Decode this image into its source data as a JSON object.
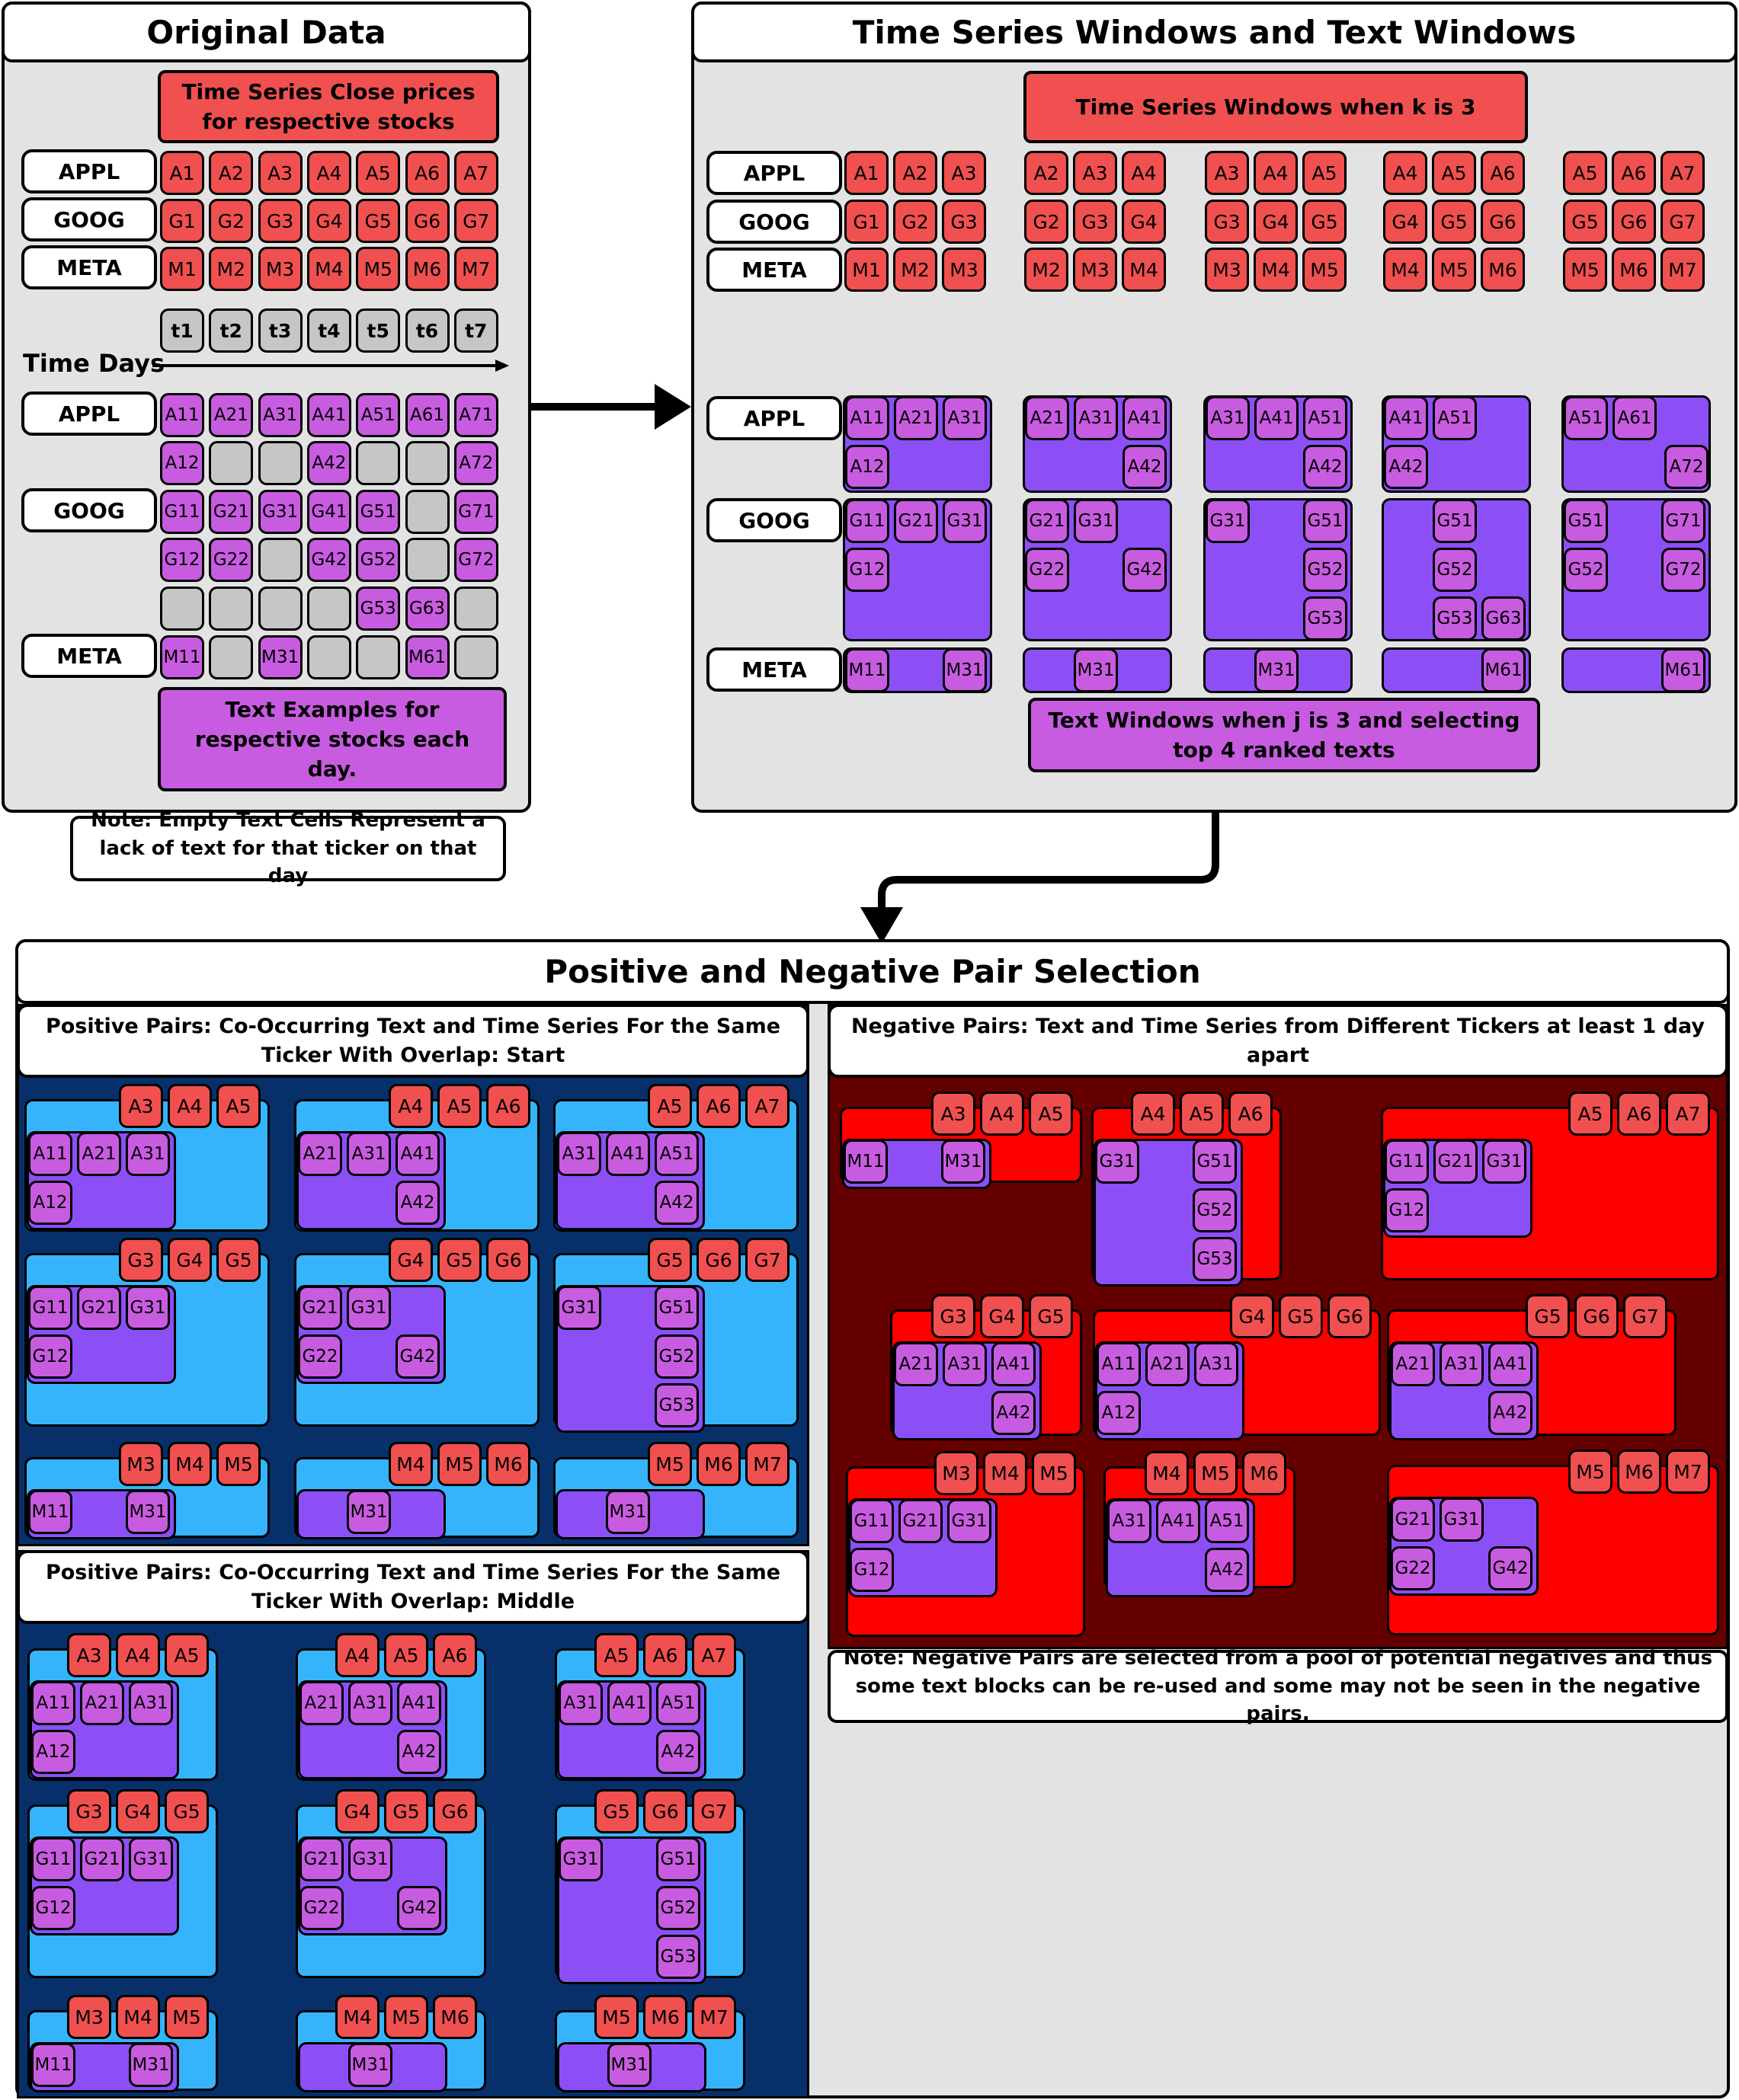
{
  "original_data": {
    "title": "Original Data",
    "close_label": "Time Series Close prices for respective stocks",
    "tickers": [
      "APPL",
      "GOOG",
      "META"
    ],
    "price_rows": [
      [
        "A1",
        "A2",
        "A3",
        "A4",
        "A5",
        "A6",
        "A7"
      ],
      [
        "G1",
        "G2",
        "G3",
        "G4",
        "G5",
        "G6",
        "G7"
      ],
      [
        "M1",
        "M2",
        "M3",
        "M4",
        "M5",
        "M6",
        "M7"
      ]
    ],
    "days": [
      "t1",
      "t2",
      "t3",
      "t4",
      "t5",
      "t6",
      "t7"
    ],
    "time_label": "Time Days",
    "text_rows": [
      [
        "A11",
        "A21",
        "A31",
        "A41",
        "A51",
        "A61",
        "A71"
      ],
      [
        "A12",
        "",
        "",
        "A42",
        "",
        "",
        "A72"
      ],
      [
        "G11",
        "G21",
        "G31",
        "G41",
        "G51",
        "",
        "G71"
      ],
      [
        "G12",
        "G22",
        "",
        "G42",
        "G52",
        "",
        "G72"
      ],
      [
        "",
        "",
        "",
        "",
        "G53",
        "G63",
        ""
      ],
      [
        "M11",
        "",
        "M31",
        "",
        "",
        "M61",
        ""
      ]
    ],
    "text_label": "Text Examples for respective stocks each day.",
    "note": "Note: Empty Text Cells Represent a lack of text for that ticker on that day"
  },
  "windows": {
    "title": "Time Series Windows and Text Windows",
    "ts_label": "Time Series Windows when k is 3",
    "text_label": "Text Windows when j is 3 and selecting top 4 ranked texts",
    "tickers": [
      "APPL",
      "GOOG",
      "META"
    ],
    "ts_groups": [
      [
        [
          "A1",
          "A2",
          "A3"
        ],
        [
          "G1",
          "G2",
          "G3"
        ],
        [
          "M1",
          "M2",
          "M3"
        ]
      ],
      [
        [
          "A2",
          "A3",
          "A4"
        ],
        [
          "G2",
          "G3",
          "G4"
        ],
        [
          "M2",
          "M3",
          "M4"
        ]
      ],
      [
        [
          "A3",
          "A4",
          "A5"
        ],
        [
          "G3",
          "G4",
          "G5"
        ],
        [
          "M3",
          "M4",
          "M5"
        ]
      ],
      [
        [
          "A4",
          "A5",
          "A6"
        ],
        [
          "G4",
          "G5",
          "G6"
        ],
        [
          "M4",
          "M5",
          "M6"
        ]
      ],
      [
        [
          "A5",
          "A6",
          "A7"
        ],
        [
          "G5",
          "G6",
          "G7"
        ],
        [
          "M5",
          "M6",
          "M7"
        ]
      ]
    ],
    "text_groups": [
      {
        "appl": [
          "A11",
          "A21",
          "A31",
          "A12"
        ],
        "goog": [
          "G11",
          "G21",
          "G31",
          "G12"
        ],
        "meta": [
          "M11",
          "M31"
        ]
      },
      {
        "appl": [
          "A21",
          "A31",
          "A41",
          "A42"
        ],
        "goog": [
          "G21",
          "G31",
          "G22",
          "G42"
        ],
        "meta": [
          "M31"
        ]
      },
      {
        "appl": [
          "A31",
          "A41",
          "A51",
          "A42"
        ],
        "goog": [
          "G31",
          "G51",
          "G52",
          "G53"
        ],
        "meta": [
          "M31"
        ]
      },
      {
        "appl": [
          "A41",
          "A51",
          "A42"
        ],
        "goog": [
          "G51",
          "G52",
          "G53",
          "G63"
        ],
        "meta": [
          "M61"
        ]
      },
      {
        "appl": [
          "A51",
          "A61",
          "A72"
        ],
        "goog": [
          "G51",
          "G71",
          "G52",
          "G72"
        ],
        "meta": [
          "M61"
        ]
      }
    ]
  },
  "pairs": {
    "title": "Positive and Negative Pair Selection",
    "pos_start_title": "Positive Pairs: Co-Occurring Text and Time Series For the Same Ticker With Overlap: Start",
    "pos_mid_title": "Positive Pairs: Co-Occurring Text and Time Series For the Same Ticker With Overlap: Middle",
    "neg_title": "Negative Pairs: Text and Time Series from Different Tickers at least 1 day apart",
    "neg_note": "Note: Negative Pairs are selected from a pool of potential negatives and thus some text blocks can be re-used and some may not be seen in the negative pairs.",
    "pos_start": [
      {
        "ts": [
          "A3",
          "A4",
          "A5"
        ],
        "text": [
          "A11",
          "A21",
          "A31",
          "A12"
        ]
      },
      {
        "ts": [
          "A4",
          "A5",
          "A6"
        ],
        "text": [
          "A21",
          "A31",
          "A41",
          "A42"
        ]
      },
      {
        "ts": [
          "A5",
          "A6",
          "A7"
        ],
        "text": [
          "A31",
          "A41",
          "A51",
          "A42"
        ]
      },
      {
        "ts": [
          "G3",
          "G4",
          "G5"
        ],
        "text": [
          "G11",
          "G21",
          "G31",
          "G12"
        ]
      },
      {
        "ts": [
          "G4",
          "G5",
          "G6"
        ],
        "text": [
          "G21",
          "G31",
          "G22",
          "G42"
        ]
      },
      {
        "ts": [
          "G5",
          "G6",
          "G7"
        ],
        "text": [
          "G31",
          "G51",
          "G52",
          "G53"
        ]
      },
      {
        "ts": [
          "M3",
          "M4",
          "M5"
        ],
        "text": [
          "M11",
          "M31"
        ]
      },
      {
        "ts": [
          "M4",
          "M5",
          "M6"
        ],
        "text": [
          "M31"
        ]
      },
      {
        "ts": [
          "M5",
          "M6",
          "M7"
        ],
        "text": [
          "M31"
        ]
      }
    ],
    "pos_mid": [
      {
        "ts": [
          "A3",
          "A4",
          "A5"
        ],
        "text": [
          "A11",
          "A21",
          "A31",
          "A12"
        ]
      },
      {
        "ts": [
          "A4",
          "A5",
          "A6"
        ],
        "text": [
          "A21",
          "A31",
          "A41",
          "A42"
        ]
      },
      {
        "ts": [
          "A5",
          "A6",
          "A7"
        ],
        "text": [
          "A31",
          "A41",
          "A51",
          "A42"
        ]
      },
      {
        "ts": [
          "G3",
          "G4",
          "G5"
        ],
        "text": [
          "G11",
          "G21",
          "G31",
          "G12"
        ]
      },
      {
        "ts": [
          "G4",
          "G5",
          "G6"
        ],
        "text": [
          "G21",
          "G31",
          "G22",
          "G42"
        ]
      },
      {
        "ts": [
          "G5",
          "G6",
          "G7"
        ],
        "text": [
          "G31",
          "G51",
          "G52",
          "G53"
        ]
      },
      {
        "ts": [
          "M3",
          "M4",
          "M5"
        ],
        "text": [
          "M11",
          "M31"
        ]
      },
      {
        "ts": [
          "M4",
          "M5",
          "M6"
        ],
        "text": [
          "M31"
        ]
      },
      {
        "ts": [
          "M5",
          "M6",
          "M7"
        ],
        "text": [
          "M31"
        ]
      }
    ],
    "neg": [
      {
        "ts": [
          "A3",
          "A4",
          "A5"
        ],
        "text": [
          "M11",
          "M31"
        ]
      },
      {
        "ts": [
          "A4",
          "A5",
          "A6"
        ],
        "text": [
          "G31",
          "G51",
          "G52",
          "G53"
        ]
      },
      {
        "ts": [
          "A5",
          "A6",
          "A7"
        ],
        "text": [
          "G11",
          "G21",
          "G31",
          "G12"
        ]
      },
      {
        "ts": [
          "G3",
          "G4",
          "G5"
        ],
        "text": [
          "A21",
          "A31",
          "A41",
          "A42"
        ]
      },
      {
        "ts": [
          "G4",
          "G5",
          "G6"
        ],
        "text": [
          "A11",
          "A21",
          "A31",
          "A12"
        ]
      },
      {
        "ts": [
          "G5",
          "G6",
          "G7"
        ],
        "text": [
          "A21",
          "A31",
          "A41",
          "A42"
        ]
      },
      {
        "ts": [
          "M3",
          "M4",
          "M5"
        ],
        "text": [
          "G11",
          "G21",
          "G31",
          "G12"
        ]
      },
      {
        "ts": [
          "M4",
          "M5",
          "M6"
        ],
        "text": [
          "A31",
          "A41",
          "A51",
          "A42"
        ]
      },
      {
        "ts": [
          "M5",
          "M6",
          "M7"
        ],
        "text": [
          "G21",
          "G31",
          "G22",
          "G42"
        ]
      }
    ]
  },
  "colors": {
    "ts_cell": "#f05050",
    "text_cell": "#c85ce0",
    "empty_cell": "#c6c6c6",
    "text_block": "#8c4ff6",
    "positive_bg": "#07306a",
    "positive_block": "#36b4fb",
    "negative_bg": "#640000",
    "negative_block": "#ff0000",
    "panel_bg": "#e3e3e3"
  }
}
